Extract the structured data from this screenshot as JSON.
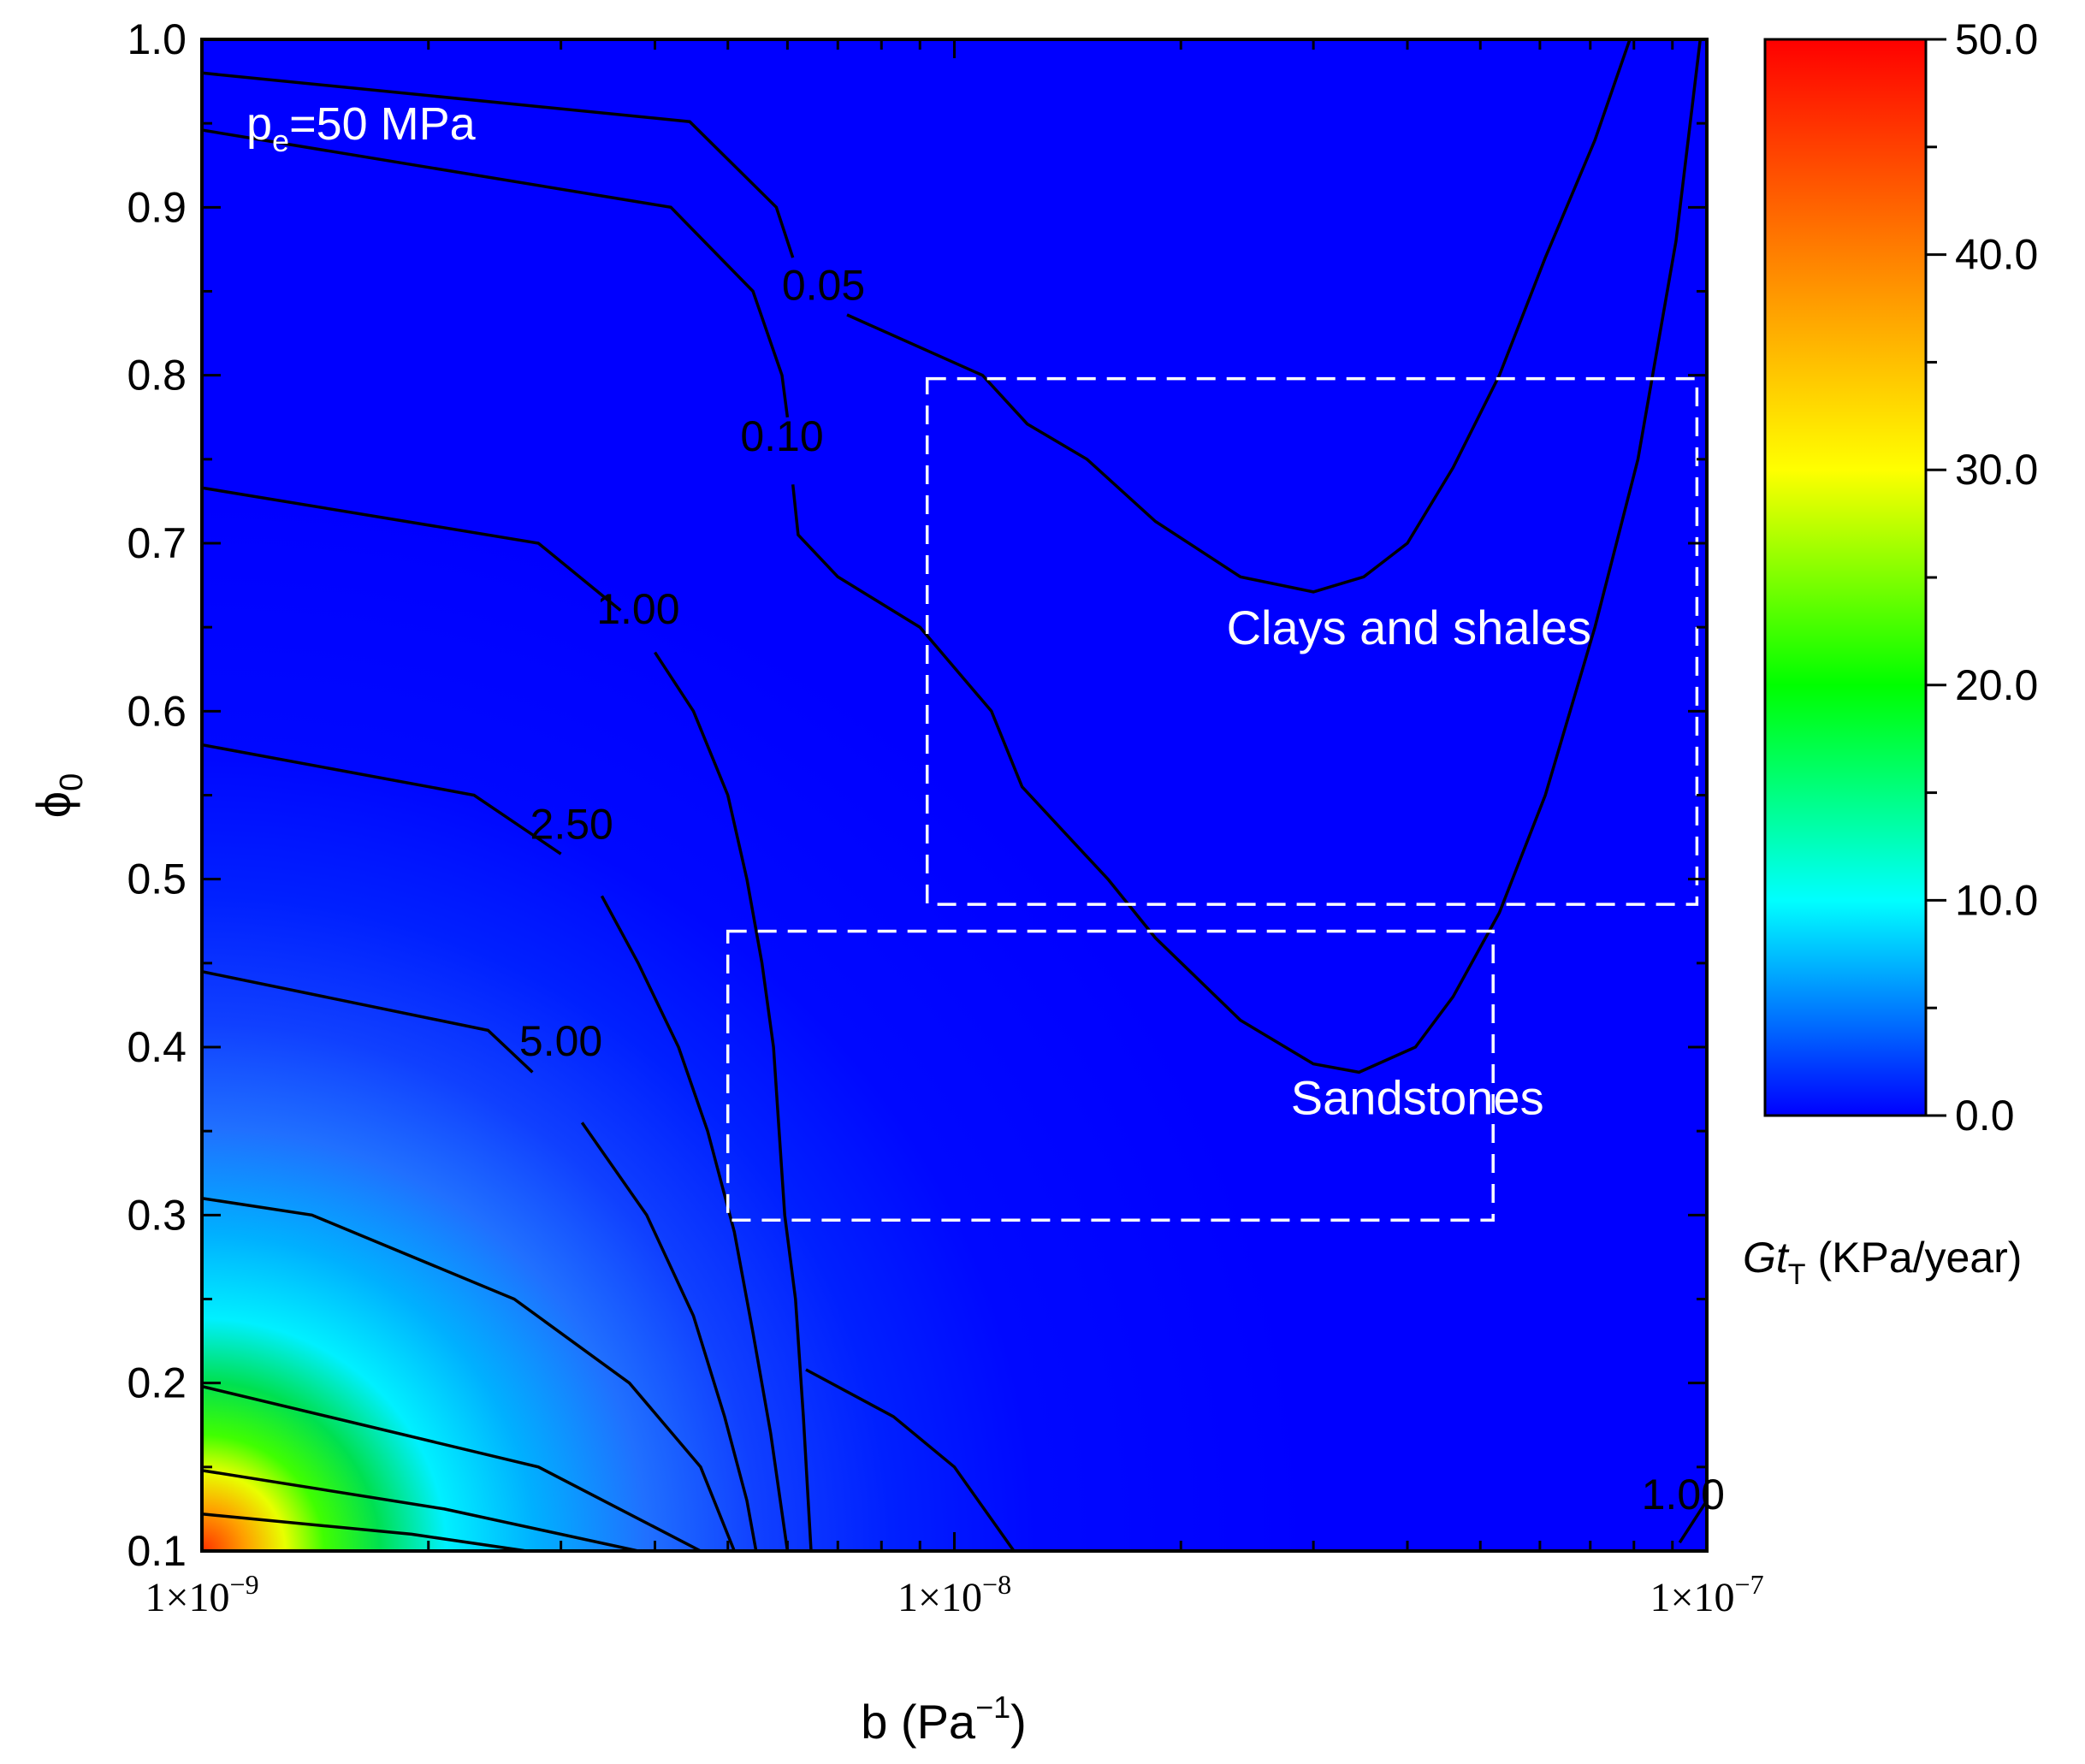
{
  "chart_data": {
    "type": "heatmap",
    "title": "",
    "annotation": {
      "main": "p",
      "sub": "e",
      "rest": "=50 MPa"
    },
    "xlabel": {
      "main": "b (Pa",
      "sup": "−1",
      "close": ")"
    },
    "ylabel": {
      "main": "ϕ",
      "sub": "0"
    },
    "x_scale": "log",
    "xlim": [
      1e-09,
      1e-07
    ],
    "ylim": [
      0.1,
      1.0
    ],
    "x_ticks": [
      {
        "value": 1e-09,
        "mant": "1×10",
        "exp": "−9"
      },
      {
        "value": 1e-08,
        "mant": "1×10",
        "exp": "−8"
      },
      {
        "value": 1e-07,
        "mant": "1×10",
        "exp": "−7"
      }
    ],
    "y_ticks": [
      {
        "value": 0.1,
        "label": "0.1"
      },
      {
        "value": 0.2,
        "label": "0.2"
      },
      {
        "value": 0.3,
        "label": "0.3"
      },
      {
        "value": 0.4,
        "label": "0.4"
      },
      {
        "value": 0.5,
        "label": "0.5"
      },
      {
        "value": 0.6,
        "label": "0.6"
      },
      {
        "value": 0.7,
        "label": "0.7"
      },
      {
        "value": 0.8,
        "label": "0.8"
      },
      {
        "value": 0.9,
        "label": "0.9"
      },
      {
        "value": 1.0,
        "label": "1.0"
      }
    ],
    "colorbar": {
      "label": {
        "main": "Gt",
        "sub": "T",
        "rest": " (KPa/year)"
      },
      "range": [
        0,
        50
      ],
      "ticks": [
        {
          "value": 0,
          "label": "0.0"
        },
        {
          "value": 10,
          "label": "10.0"
        },
        {
          "value": 20,
          "label": "20.0"
        },
        {
          "value": 30,
          "label": "30.0"
        },
        {
          "value": 40,
          "label": "40.0"
        },
        {
          "value": 50,
          "label": "50.0"
        }
      ],
      "colors": [
        "#0000ff",
        "#00ffff",
        "#00ff00",
        "#ffff00",
        "#ff8000",
        "#ff0000"
      ]
    },
    "contours": [
      {
        "level": "0.05",
        "points": [
          [
            1e-09,
            0.98
          ],
          [
            4.45e-09,
            0.951
          ],
          [
            5.8e-09,
            0.9
          ],
          [
            6.1e-09,
            0.87
          ]
        ],
        "points2": [
          [
            7.2e-09,
            0.836
          ],
          [
            1.09e-08,
            0.8
          ],
          [
            1.25e-08,
            0.771
          ],
          [
            1.5e-08,
            0.75
          ],
          [
            1.85e-08,
            0.713
          ],
          [
            2.4e-08,
            0.68
          ],
          [
            3e-08,
            0.671
          ],
          [
            3.5e-08,
            0.68
          ],
          [
            4e-08,
            0.7
          ],
          [
            4.6e-08,
            0.745
          ],
          [
            5.3e-08,
            0.8
          ],
          [
            6.1e-08,
            0.87
          ],
          [
            7.1e-08,
            0.94
          ],
          [
            7.9e-08,
            1.0
          ]
        ],
        "label_value": [
          6.7e-09,
          0.845
        ]
      },
      {
        "level": "0.10",
        "points": [
          [
            1e-09,
            0.946
          ],
          [
            4.2e-09,
            0.9
          ],
          [
            5.4e-09,
            0.85
          ],
          [
            5.9e-09,
            0.8
          ],
          [
            6e-09,
            0.775
          ]
        ],
        "points2": [
          [
            6.1e-09,
            0.735
          ],
          [
            6.2e-09,
            0.705
          ],
          [
            7e-09,
            0.68
          ],
          [
            9e-09,
            0.65
          ],
          [
            1.12e-08,
            0.6
          ],
          [
            1.23e-08,
            0.555
          ],
          [
            1.6e-08,
            0.5
          ],
          [
            1.85e-08,
            0.465
          ],
          [
            2.4e-08,
            0.416
          ],
          [
            3e-08,
            0.39
          ],
          [
            3.45e-08,
            0.385
          ],
          [
            4.1e-08,
            0.4
          ],
          [
            4.6e-08,
            0.43
          ],
          [
            5.3e-08,
            0.48
          ],
          [
            6.1e-08,
            0.55
          ],
          [
            7.1e-08,
            0.65
          ],
          [
            8.1e-08,
            0.75
          ],
          [
            9.1e-08,
            0.88
          ],
          [
            9.8e-08,
            1.0
          ]
        ],
        "label_value": [
          5.9e-09,
          0.755
        ]
      },
      {
        "level": "1.00",
        "points": [
          [
            1e-09,
            0.733
          ],
          [
            2.8e-09,
            0.7
          ],
          [
            3.6e-09,
            0.66
          ]
        ],
        "points2": [
          [
            4e-09,
            0.635
          ],
          [
            4.5e-09,
            0.6
          ],
          [
            5e-09,
            0.55
          ],
          [
            5.3e-09,
            0.5
          ],
          [
            5.55e-09,
            0.45
          ],
          [
            5.75e-09,
            0.4
          ],
          [
            5.95e-09,
            0.3
          ],
          [
            6.15e-09,
            0.25
          ],
          [
            6.3e-09,
            0.18
          ],
          [
            6.45e-09,
            0.1
          ]
        ],
        "label_value": [
          3.8e-09,
          0.652
        ]
      },
      {
        "level": "2.50",
        "points": [
          [
            1e-09,
            0.58
          ],
          [
            2.3e-09,
            0.55
          ],
          [
            3e-09,
            0.515
          ]
        ],
        "points2": [
          [
            3.4e-09,
            0.49
          ],
          [
            3.8e-09,
            0.45
          ],
          [
            4.3e-09,
            0.4
          ],
          [
            4.7e-09,
            0.35
          ],
          [
            5.1e-09,
            0.29
          ],
          [
            5.4e-09,
            0.23
          ],
          [
            5.7e-09,
            0.17
          ],
          [
            6e-09,
            0.1
          ]
        ],
        "label_value": [
          3.1e-09,
          0.524
        ]
      },
      {
        "level": "5.00",
        "points": [
          [
            1e-09,
            0.445
          ],
          [
            2.4e-09,
            0.41
          ],
          [
            2.75e-09,
            0.385
          ]
        ],
        "points2": [
          [
            3.2e-09,
            0.355
          ],
          [
            3.9e-09,
            0.3
          ],
          [
            4.5e-09,
            0.24
          ],
          [
            4.95e-09,
            0.18
          ],
          [
            5.3e-09,
            0.13
          ],
          [
            5.45e-09,
            0.1
          ]
        ],
        "label_value": [
          3e-09,
          0.395
        ]
      },
      {
        "level": "",
        "points": [
          [
            1e-09,
            0.31
          ],
          [
            1.4e-09,
            0.3
          ],
          [
            2.6e-09,
            0.25
          ],
          [
            3.7e-09,
            0.2
          ],
          [
            4.6e-09,
            0.15
          ],
          [
            5.1e-09,
            0.1
          ]
        ]
      },
      {
        "level": "",
        "points": [
          [
            1e-09,
            0.198
          ],
          [
            2.8e-09,
            0.15
          ],
          [
            4.6e-09,
            0.1
          ]
        ]
      },
      {
        "level": "",
        "points": [
          [
            1e-09,
            0.148
          ],
          [
            2.1e-09,
            0.125
          ],
          [
            3.8e-09,
            0.1
          ]
        ]
      },
      {
        "level": "",
        "points": [
          [
            1e-09,
            0.122
          ],
          [
            1.9e-09,
            0.11
          ],
          [
            2.7e-09,
            0.1
          ]
        ]
      },
      {
        "level": "",
        "points": [
          [
            6.35e-09,
            0.208
          ],
          [
            8.3e-09,
            0.18
          ],
          [
            1e-08,
            0.15
          ],
          [
            1.2e-08,
            0.1
          ]
        ]
      },
      {
        "level": "1.00",
        "points": [
          [
            9.2e-08,
            0.105
          ],
          [
            1e-07,
            0.13
          ]
        ],
        "label_value": [
          9.3e-08,
          0.125
        ]
      }
    ],
    "regions": [
      {
        "label": "Clays and shales",
        "b_range": [
          9.2e-09,
          9.7e-08
        ],
        "phi_range": [
          0.485,
          0.798
        ],
        "label_value": [
          2.3e-08,
          0.64
        ]
      },
      {
        "label": "Sandstones",
        "b_range": [
          5e-09,
          5.2e-08
        ],
        "phi_range": [
          0.297,
          0.469
        ],
        "label_value": [
          2.8e-08,
          0.36
        ]
      }
    ]
  }
}
